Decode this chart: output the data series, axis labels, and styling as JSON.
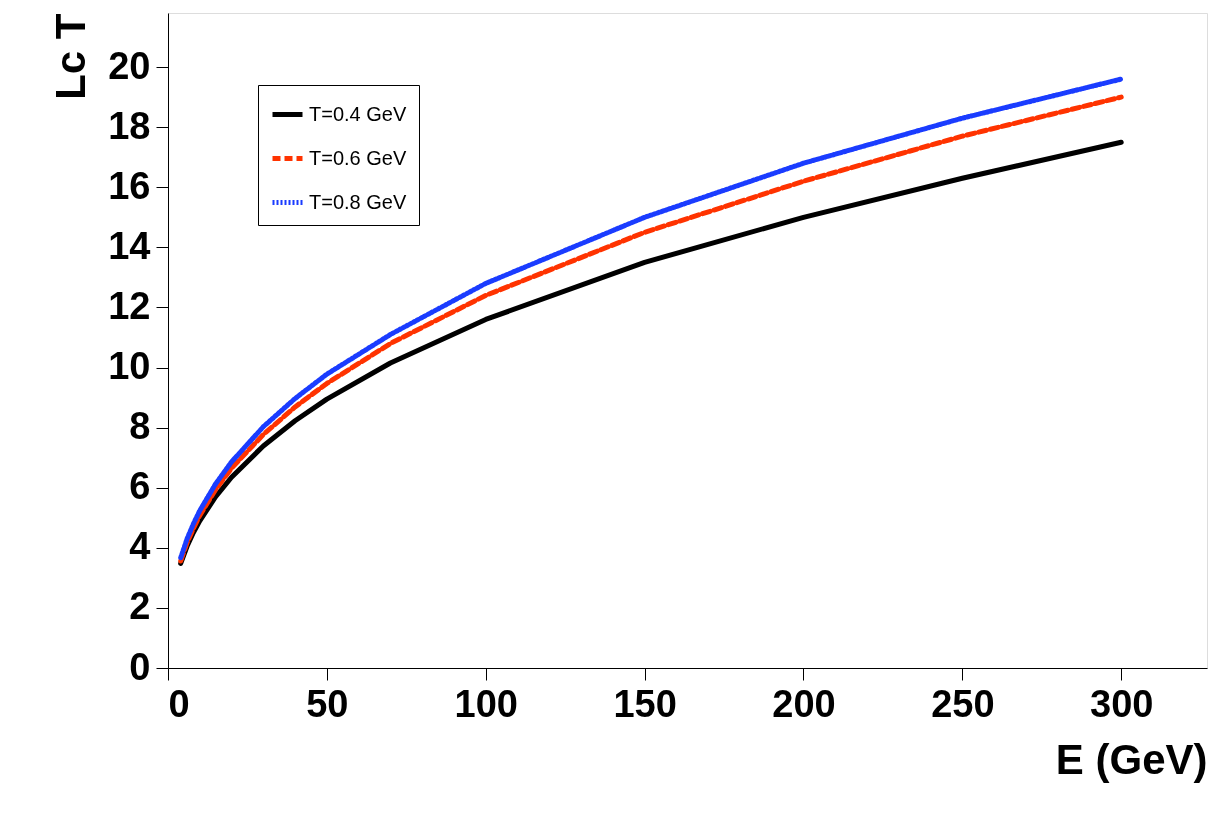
{
  "chart_data": {
    "type": "line",
    "xlabel": "E (GeV)",
    "ylabel": "Lc T",
    "x": [
      4,
      6,
      8,
      10,
      15,
      20,
      30,
      40,
      50,
      70,
      100,
      150,
      200,
      250,
      300
    ],
    "series": [
      {
        "name": "T=0.4 GeV",
        "color": "#000000",
        "line_style": "solid",
        "values": [
          3.48,
          4.05,
          4.51,
          4.9,
          5.7,
          6.35,
          7.39,
          8.23,
          8.95,
          10.15,
          11.6,
          13.5,
          15.0,
          16.3,
          17.5
        ]
      },
      {
        "name": "T=0.6 GeV",
        "color": "#ff3300",
        "line_style": "dashed",
        "values": [
          3.56,
          4.17,
          4.65,
          5.08,
          5.94,
          6.65,
          7.77,
          8.69,
          9.47,
          10.8,
          12.4,
          14.5,
          16.2,
          17.7,
          19.0
        ]
      },
      {
        "name": "T=0.8 GeV",
        "color": "#1a3cff",
        "line_style": "dotted",
        "values": [
          3.67,
          4.3,
          4.8,
          5.24,
          6.13,
          6.86,
          8.03,
          8.97,
          9.78,
          11.1,
          12.8,
          15.0,
          16.8,
          18.3,
          19.6
        ]
      }
    ],
    "xlim": [
      0,
      327
    ],
    "ylim": [
      0,
      21.8
    ],
    "xticks": [
      0,
      50,
      100,
      150,
      200,
      250,
      300
    ],
    "yticks": [
      0,
      2,
      4,
      6,
      8,
      10,
      12,
      14,
      16,
      18,
      20
    ],
    "grid": false,
    "legend": "top left"
  }
}
